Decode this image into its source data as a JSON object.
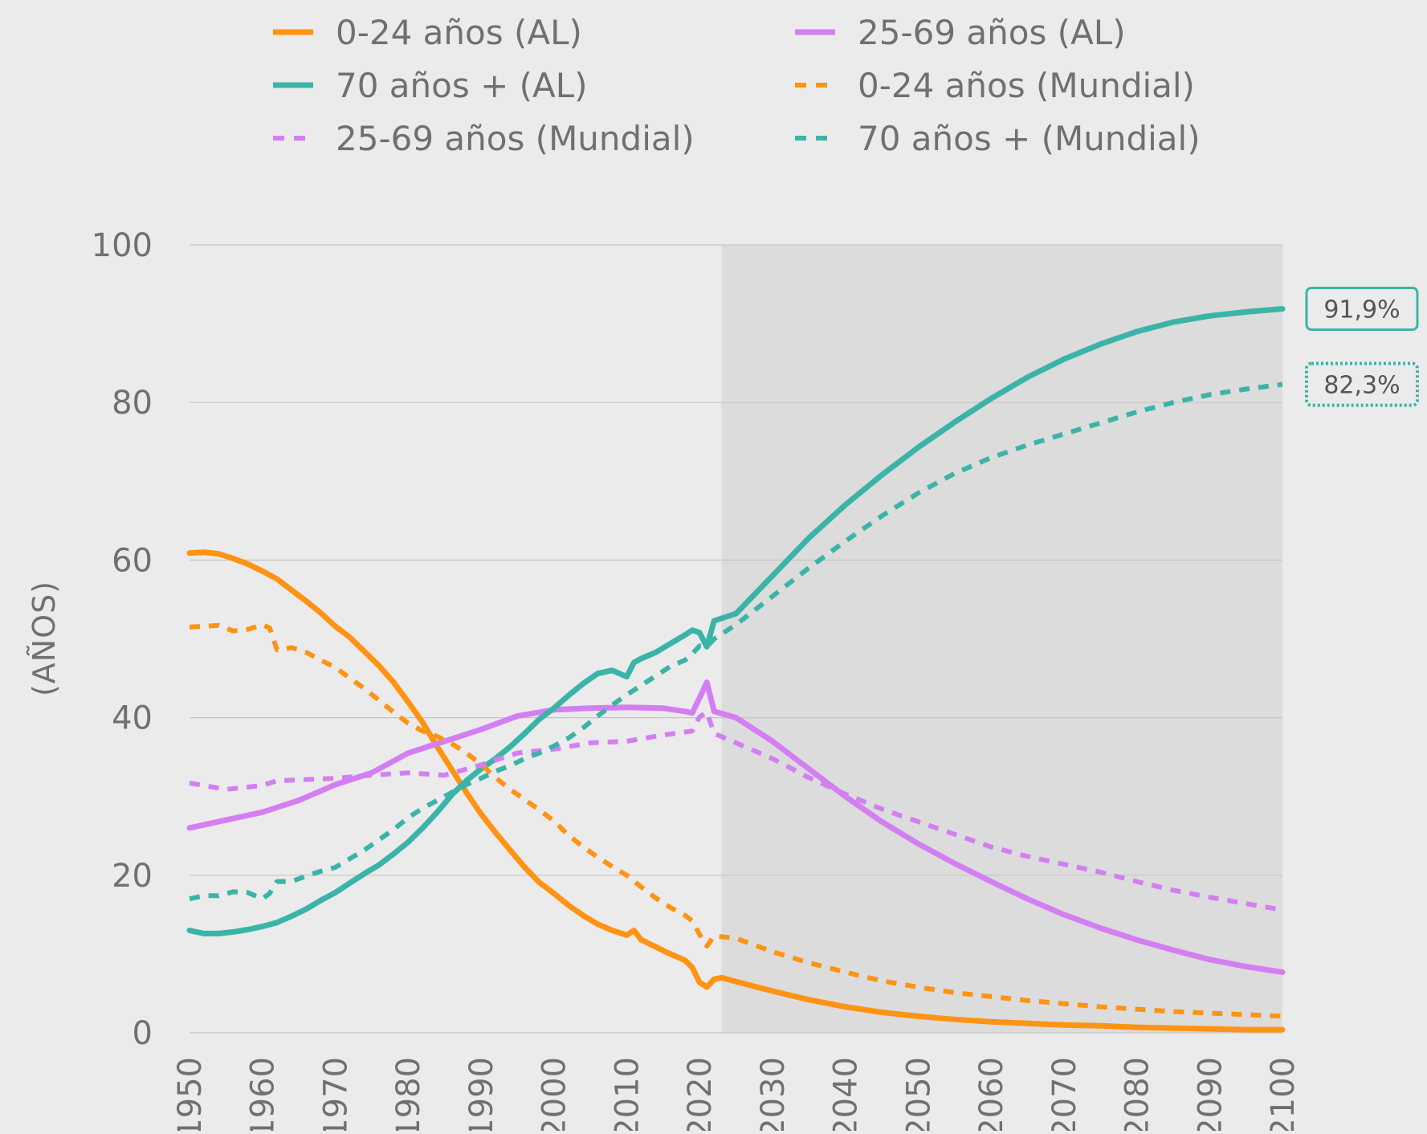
{
  "chart_data": {
    "type": "line",
    "title": "",
    "xlabel": "",
    "ylabel": "(AÑOS)",
    "xlim": [
      1950,
      2100
    ],
    "ylim": [
      0,
      100
    ],
    "x_ticks": [
      1950,
      1960,
      1970,
      1980,
      1990,
      2000,
      2010,
      2020,
      2030,
      2040,
      2050,
      2060,
      2070,
      2080,
      2090,
      2100
    ],
    "y_ticks": [
      0,
      20,
      40,
      60,
      80,
      100
    ],
    "grid": "horizontal",
    "legend_position": "top",
    "projection_shaded_from": 2023,
    "colors": {
      "background": "#ebebeb",
      "projection_band": "#dcdcdc",
      "grid": "#c6c6c6",
      "text": "#707070",
      "orange": "#ff9313",
      "violet": "#d37ff2",
      "teal": "#3bb4a8"
    },
    "series": [
      {
        "name": "0-24 años (AL)",
        "color": "#ff9313",
        "dash": false,
        "x": [
          1950,
          1952,
          1954,
          1956,
          1958,
          1960,
          1962,
          1964,
          1966,
          1968,
          1970,
          1972,
          1974,
          1976,
          1978,
          1980,
          1982,
          1984,
          1986,
          1988,
          1990,
          1992,
          1994,
          1996,
          1998,
          2000,
          2002,
          2004,
          2006,
          2008,
          2010,
          2011,
          2012,
          2014,
          2016,
          2018,
          2019,
          2020,
          2021,
          2022,
          2023,
          2025,
          2030,
          2035,
          2040,
          2045,
          2050,
          2055,
          2060,
          2065,
          2070,
          2075,
          2080,
          2085,
          2090,
          2095,
          2100
        ],
        "y": [
          60.9,
          61.0,
          60.8,
          60.2,
          59.5,
          58.6,
          57.6,
          56.2,
          54.8,
          53.3,
          51.6,
          50.2,
          48.4,
          46.6,
          44.5,
          42.0,
          39.4,
          36.3,
          33.4,
          30.5,
          27.8,
          25.4,
          23.2,
          21.0,
          19.1,
          17.7,
          16.2,
          14.9,
          13.8,
          13.0,
          12.4,
          13.0,
          11.8,
          10.9,
          10.0,
          9.2,
          8.3,
          6.4,
          5.8,
          6.8,
          7.0,
          6.5,
          5.3,
          4.2,
          3.3,
          2.6,
          2.1,
          1.7,
          1.4,
          1.2,
          1.0,
          0.9,
          0.7,
          0.6,
          0.5,
          0.4,
          0.4
        ]
      },
      {
        "name": "25-69 años (AL)",
        "color": "#d37ff2",
        "dash": false,
        "x": [
          1950,
          1955,
          1960,
          1965,
          1970,
          1975,
          1980,
          1985,
          1990,
          1995,
          2000,
          2005,
          2010,
          2015,
          2018,
          2019,
          2020,
          2021,
          2022,
          2025,
          2030,
          2035,
          2040,
          2045,
          2050,
          2055,
          2060,
          2065,
          2070,
          2075,
          2080,
          2085,
          2090,
          2095,
          2100
        ],
        "y": [
          26.0,
          27.0,
          28.0,
          29.5,
          31.5,
          33.0,
          35.5,
          37.0,
          38.5,
          40.2,
          41.0,
          41.2,
          41.3,
          41.2,
          40.8,
          40.6,
          42.5,
          44.5,
          40.8,
          40.0,
          37.0,
          33.5,
          30.0,
          26.8,
          24.0,
          21.5,
          19.2,
          17.0,
          15.0,
          13.3,
          11.8,
          10.5,
          9.3,
          8.4,
          7.7
        ]
      },
      {
        "name": "70 años + (AL)",
        "color": "#3bb4a8",
        "dash": false,
        "x": [
          1950,
          1952,
          1954,
          1956,
          1958,
          1960,
          1962,
          1964,
          1966,
          1968,
          1970,
          1972,
          1974,
          1976,
          1978,
          1980,
          1982,
          1984,
          1986,
          1988,
          1990,
          1992,
          1994,
          1996,
          1998,
          2000,
          2002,
          2004,
          2006,
          2008,
          2010,
          2011,
          2012,
          2014,
          2016,
          2018,
          2019,
          2020,
          2021,
          2022,
          2025,
          2030,
          2035,
          2040,
          2045,
          2050,
          2055,
          2060,
          2065,
          2070,
          2075,
          2080,
          2085,
          2090,
          2095,
          2100
        ],
        "y": [
          13.0,
          12.6,
          12.6,
          12.8,
          13.1,
          13.5,
          14.0,
          14.8,
          15.7,
          16.8,
          17.8,
          19.0,
          20.2,
          21.3,
          22.7,
          24.2,
          26.0,
          28.0,
          30.2,
          32.0,
          33.5,
          34.8,
          36.3,
          38.0,
          39.8,
          41.2,
          42.8,
          44.3,
          45.6,
          46.0,
          45.2,
          47.0,
          47.5,
          48.3,
          49.4,
          50.5,
          51.1,
          50.8,
          49.0,
          52.3,
          53.2,
          58.0,
          62.8,
          67.0,
          70.8,
          74.3,
          77.5,
          80.5,
          83.2,
          85.5,
          87.4,
          89.0,
          90.2,
          91.0,
          91.5,
          91.9
        ]
      },
      {
        "name": "0-24 años (Mundial)",
        "color": "#ff9313",
        "dash": true,
        "x": [
          1950,
          1952,
          1954,
          1956,
          1958,
          1960,
          1961,
          1962,
          1964,
          1966,
          1968,
          1970,
          1972,
          1974,
          1976,
          1978,
          1980,
          1982,
          1984,
          1986,
          1988,
          1990,
          1992,
          1994,
          1996,
          1998,
          2000,
          2002,
          2004,
          2006,
          2008,
          2010,
          2012,
          2014,
          2016,
          2018,
          2019,
          2020,
          2021,
          2022,
          2025,
          2030,
          2035,
          2040,
          2045,
          2050,
          2055,
          2060,
          2065,
          2070,
          2075,
          2080,
          2085,
          2090,
          2095,
          2100
        ],
        "y": [
          51.5,
          51.6,
          51.7,
          51.0,
          51.2,
          51.8,
          51.4,
          48.6,
          48.9,
          48.3,
          47.3,
          46.4,
          45.0,
          43.7,
          42.2,
          40.7,
          39.3,
          38.3,
          37.6,
          36.7,
          35.5,
          34.1,
          32.4,
          30.9,
          29.6,
          28.3,
          26.9,
          25.1,
          23.6,
          22.3,
          21.1,
          20.0,
          18.5,
          17.1,
          15.9,
          14.9,
          14.2,
          12.5,
          11.0,
          12.3,
          12.0,
          10.3,
          8.9,
          7.7,
          6.6,
          5.8,
          5.1,
          4.6,
          4.1,
          3.7,
          3.3,
          3.0,
          2.7,
          2.5,
          2.3,
          2.1
        ]
      },
      {
        "name": "25-69 años (Mundial)",
        "color": "#d37ff2",
        "dash": true,
        "x": [
          1950,
          1955,
          1960,
          1962,
          1965,
          1970,
          1975,
          1980,
          1985,
          1990,
          1995,
          2000,
          2005,
          2010,
          2015,
          2019,
          2020,
          2021,
          2022,
          2025,
          2030,
          2035,
          2040,
          2045,
          2050,
          2055,
          2060,
          2065,
          2070,
          2075,
          2080,
          2085,
          2090,
          2095,
          2100
        ],
        "y": [
          31.7,
          30.9,
          31.4,
          32.0,
          32.1,
          32.3,
          32.7,
          33.0,
          32.7,
          34.0,
          35.5,
          36.0,
          36.8,
          37.0,
          37.8,
          38.3,
          40.1,
          40.7,
          38.0,
          36.8,
          34.8,
          32.4,
          30.3,
          28.4,
          26.8,
          25.2,
          23.6,
          22.4,
          21.4,
          20.4,
          19.2,
          18.1,
          17.2,
          16.4,
          15.6
        ]
      },
      {
        "name": "70 años + (Mundial)",
        "color": "#3bb4a8",
        "dash": true,
        "x": [
          1950,
          1952,
          1954,
          1956,
          1958,
          1960,
          1961,
          1962,
          1964,
          1966,
          1968,
          1970,
          1972,
          1974,
          1976,
          1978,
          1980,
          1982,
          1984,
          1986,
          1988,
          1990,
          1992,
          1994,
          1996,
          1998,
          2000,
          2002,
          2004,
          2006,
          2008,
          2010,
          2012,
          2014,
          2016,
          2018,
          2019,
          2020,
          2021,
          2022,
          2025,
          2030,
          2035,
          2040,
          2045,
          2050,
          2055,
          2060,
          2065,
          2070,
          2075,
          2080,
          2085,
          2090,
          2095,
          2100
        ],
        "y": [
          17.0,
          17.4,
          17.4,
          17.9,
          17.8,
          17.0,
          17.7,
          19.2,
          19.2,
          19.9,
          20.5,
          21.0,
          22.1,
          23.2,
          24.5,
          25.8,
          27.3,
          28.5,
          29.5,
          30.5,
          31.5,
          32.3,
          33.2,
          33.9,
          34.8,
          35.5,
          36.4,
          37.4,
          38.7,
          40.2,
          41.6,
          42.9,
          44.1,
          45.3,
          46.5,
          47.3,
          48.1,
          49.1,
          49.0,
          50.0,
          51.8,
          55.4,
          59.0,
          62.4,
          65.6,
          68.5,
          71.0,
          73.0,
          74.6,
          76.0,
          77.4,
          78.8,
          80.0,
          81.0,
          81.7,
          82.3
        ]
      }
    ],
    "end_labels": [
      {
        "series": "70 años + (AL)",
        "text": "91,9%",
        "value": 91.9,
        "color": "#3bb4a8",
        "border": "solid"
      },
      {
        "series": "70 años + (Mundial)",
        "text": "82,3%",
        "value": 82.3,
        "color": "#3bb4a8",
        "border": "dotted"
      }
    ]
  }
}
